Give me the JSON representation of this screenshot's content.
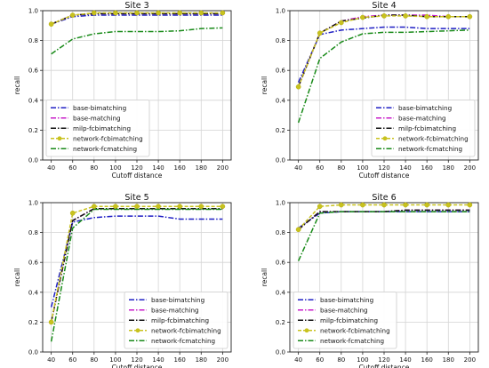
{
  "chart_data": [
    {
      "type": "line",
      "title": "Site 3",
      "xlabel": "Cutoff distance",
      "ylabel": "recall",
      "x": [
        40,
        60,
        80,
        100,
        120,
        140,
        160,
        180,
        200
      ],
      "xlim": [
        32,
        208
      ],
      "ylim": [
        0.0,
        1.0
      ],
      "yticks": [
        "0.0",
        "0.2",
        "0.4",
        "0.6",
        "0.8",
        "1.0"
      ],
      "xticks": [
        "40",
        "60",
        "80",
        "100",
        "120",
        "140",
        "160",
        "180",
        "200"
      ],
      "grid": true,
      "legend_position": "lower-left",
      "series": [
        {
          "name": "base-bimatching",
          "color": "#1f1fc4",
          "style": "dashdot",
          "marker": "",
          "values": [
            0.91,
            0.96,
            0.97,
            0.97,
            0.97,
            0.97,
            0.97,
            0.97,
            0.97
          ]
        },
        {
          "name": "base-matching",
          "color": "#c81cc8",
          "style": "dashdot",
          "marker": "",
          "values": [
            0.91,
            0.97,
            0.98,
            0.98,
            0.98,
            0.98,
            0.98,
            0.98,
            0.98
          ]
        },
        {
          "name": "milp-fcbimatching",
          "color": "#111111",
          "style": "dashdot",
          "marker": "",
          "values": [
            0.91,
            0.97,
            0.98,
            0.98,
            0.98,
            0.98,
            0.98,
            0.98,
            0.98
          ]
        },
        {
          "name": "network-fcbimatching",
          "color": "#c8c21e",
          "style": "dashed",
          "marker": "o",
          "values": [
            0.91,
            0.97,
            0.985,
            0.985,
            0.985,
            0.985,
            0.985,
            0.985,
            0.985
          ]
        },
        {
          "name": "network-fcmatching",
          "color": "#188a18",
          "style": "dashdot",
          "marker": "",
          "values": [
            0.71,
            0.81,
            0.845,
            0.86,
            0.86,
            0.86,
            0.865,
            0.88,
            0.885
          ]
        }
      ]
    },
    {
      "type": "line",
      "title": "Site 4",
      "xlabel": "Cutoff distance",
      "ylabel": "recall",
      "x": [
        40,
        60,
        80,
        100,
        120,
        140,
        160,
        180,
        200
      ],
      "xlim": [
        32,
        208
      ],
      "ylim": [
        0.0,
        1.0
      ],
      "yticks": [
        "0.0",
        "0.2",
        "0.4",
        "0.6",
        "0.8",
        "1.0"
      ],
      "xticks": [
        "40",
        "60",
        "80",
        "100",
        "120",
        "140",
        "160",
        "180",
        "200"
      ],
      "grid": true,
      "legend_position": "lower-right",
      "series": [
        {
          "name": "base-bimatching",
          "color": "#1f1fc4",
          "style": "dashdot",
          "marker": "",
          "values": [
            0.52,
            0.84,
            0.87,
            0.88,
            0.89,
            0.89,
            0.88,
            0.88,
            0.88
          ]
        },
        {
          "name": "base-matching",
          "color": "#c81cc8",
          "style": "dashdot",
          "marker": "",
          "values": [
            0.49,
            0.85,
            0.93,
            0.96,
            0.97,
            0.97,
            0.97,
            0.96,
            0.96
          ]
        },
        {
          "name": "milp-fcbimatching",
          "color": "#111111",
          "style": "dashdot",
          "marker": "",
          "values": [
            0.49,
            0.85,
            0.93,
            0.95,
            0.97,
            0.97,
            0.96,
            0.96,
            0.96
          ]
        },
        {
          "name": "network-fcbimatching",
          "color": "#c8c21e",
          "style": "dashed",
          "marker": "o",
          "values": [
            0.49,
            0.85,
            0.92,
            0.955,
            0.965,
            0.965,
            0.96,
            0.96,
            0.96
          ]
        },
        {
          "name": "network-fcmatching",
          "color": "#188a18",
          "style": "dashdot",
          "marker": "",
          "values": [
            0.25,
            0.68,
            0.79,
            0.845,
            0.855,
            0.855,
            0.86,
            0.865,
            0.87
          ]
        }
      ]
    },
    {
      "type": "line",
      "title": "Site 5",
      "xlabel": "Cutoff distance",
      "ylabel": "recall",
      "x": [
        40,
        60,
        80,
        100,
        120,
        140,
        160,
        180,
        200
      ],
      "xlim": [
        32,
        208
      ],
      "ylim": [
        0.0,
        1.0
      ],
      "yticks": [
        "0.0",
        "0.2",
        "0.4",
        "0.6",
        "0.8",
        "1.0"
      ],
      "xticks": [
        "40",
        "60",
        "80",
        "100",
        "120",
        "140",
        "160",
        "180",
        "200"
      ],
      "grid": true,
      "legend_position": "lower-right",
      "series": [
        {
          "name": "base-bimatching",
          "color": "#1f1fc4",
          "style": "dashdot",
          "marker": "",
          "values": [
            0.3,
            0.87,
            0.9,
            0.91,
            0.91,
            0.91,
            0.89,
            0.89,
            0.89
          ]
        },
        {
          "name": "base-matching",
          "color": "#c81cc8",
          "style": "dashdot",
          "marker": "",
          "values": [
            0.2,
            0.88,
            0.96,
            0.96,
            0.96,
            0.96,
            0.96,
            0.96,
            0.96
          ]
        },
        {
          "name": "milp-fcbimatching",
          "color": "#111111",
          "style": "dashdot",
          "marker": "",
          "values": [
            0.2,
            0.88,
            0.96,
            0.96,
            0.96,
            0.96,
            0.96,
            0.96,
            0.96
          ]
        },
        {
          "name": "network-fcbimatching",
          "color": "#c8c21e",
          "style": "dashed",
          "marker": "o",
          "values": [
            0.2,
            0.93,
            0.975,
            0.975,
            0.975,
            0.975,
            0.975,
            0.975,
            0.975
          ]
        },
        {
          "name": "network-fcmatching",
          "color": "#188a18",
          "style": "dashdot",
          "marker": "",
          "values": [
            0.07,
            0.83,
            0.955,
            0.955,
            0.955,
            0.955,
            0.955,
            0.955,
            0.955
          ]
        }
      ]
    },
    {
      "type": "line",
      "title": "Site 6",
      "xlabel": "Cutoff distance",
      "ylabel": "recall",
      "x": [
        40,
        60,
        80,
        100,
        120,
        140,
        160,
        180,
        200
      ],
      "xlim": [
        32,
        208
      ],
      "ylim": [
        0.0,
        1.0
      ],
      "yticks": [
        "0.0",
        "0.2",
        "0.4",
        "0.6",
        "0.8",
        "1.0"
      ],
      "xticks": [
        "40",
        "60",
        "80",
        "100",
        "120",
        "140",
        "160",
        "180",
        "200"
      ],
      "grid": true,
      "legend_position": "lower-left",
      "series": [
        {
          "name": "base-bimatching",
          "color": "#1f1fc4",
          "style": "dashdot",
          "marker": "",
          "values": [
            0.83,
            0.93,
            0.94,
            0.94,
            0.94,
            0.94,
            0.94,
            0.94,
            0.94
          ]
        },
        {
          "name": "base-matching",
          "color": "#c81cc8",
          "style": "dashdot",
          "marker": "",
          "values": [
            0.82,
            0.94,
            0.94,
            0.94,
            0.94,
            0.95,
            0.95,
            0.95,
            0.95
          ]
        },
        {
          "name": "milp-fcbimatching",
          "color": "#111111",
          "style": "dashdot",
          "marker": "",
          "values": [
            0.82,
            0.94,
            0.94,
            0.94,
            0.94,
            0.95,
            0.95,
            0.95,
            0.95
          ]
        },
        {
          "name": "network-fcbimatching",
          "color": "#c8c21e",
          "style": "dashed",
          "marker": "o",
          "values": [
            0.82,
            0.975,
            0.985,
            0.985,
            0.985,
            0.985,
            0.985,
            0.985,
            0.985
          ]
        },
        {
          "name": "network-fcmatching",
          "color": "#188a18",
          "style": "dashdot",
          "marker": "",
          "values": [
            0.61,
            0.93,
            0.94,
            0.94,
            0.94,
            0.94,
            0.94,
            0.94,
            0.94
          ]
        }
      ]
    }
  ]
}
